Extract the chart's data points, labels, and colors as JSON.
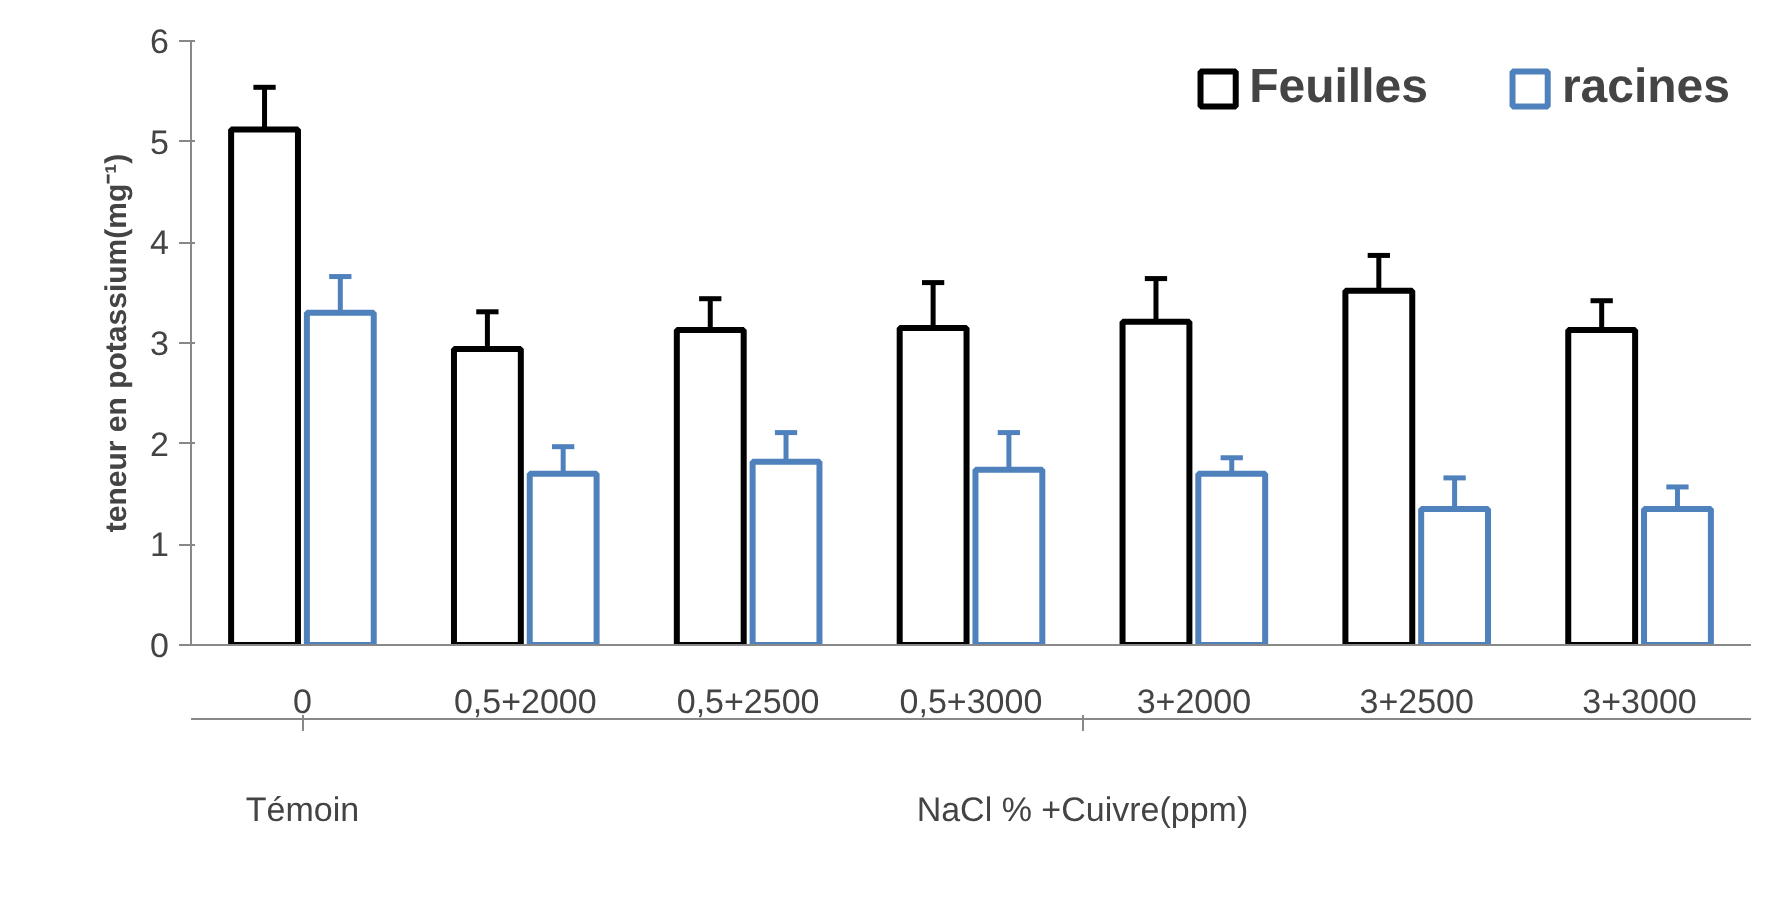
{
  "chart_data": {
    "type": "bar",
    "ylabel": "teneur en potassium(mg⁻¹)",
    "categories": [
      "0",
      "0,5+2000",
      "0,5+2500",
      "0,5+3000",
      "3+2000",
      "3+2500",
      "3+3000"
    ],
    "series": [
      {
        "name": "Feuilles",
        "color": "#000000",
        "values": [
          5.12,
          2.94,
          3.13,
          3.15,
          3.21,
          3.52,
          3.13
        ],
        "errors": [
          [
            5.12,
            5.54
          ],
          [
            2.94,
            3.31
          ],
          [
            3.13,
            3.44
          ],
          [
            3.15,
            3.6
          ],
          [
            3.21,
            3.64
          ],
          [
            3.52,
            3.87
          ],
          [
            3.13,
            3.42
          ]
        ]
      },
      {
        "name": "racines",
        "color": "#4f81bd",
        "values": [
          3.3,
          1.7,
          1.82,
          1.74,
          1.7,
          1.35,
          1.35
        ],
        "errors": [
          [
            3.3,
            3.66
          ],
          [
            1.7,
            1.97
          ],
          [
            1.82,
            2.11
          ],
          [
            1.74,
            2.11
          ],
          [
            1.7,
            1.86
          ],
          [
            1.35,
            1.66
          ],
          [
            1.35,
            1.57
          ]
        ]
      }
    ],
    "ylim": [
      0,
      6
    ],
    "yticks": [
      0,
      1,
      2,
      3,
      4,
      5,
      6
    ],
    "grid": false,
    "legend": "top right",
    "annotations": [
      "Témoin",
      "NaCl % +Cuivre(ppm)"
    ]
  }
}
